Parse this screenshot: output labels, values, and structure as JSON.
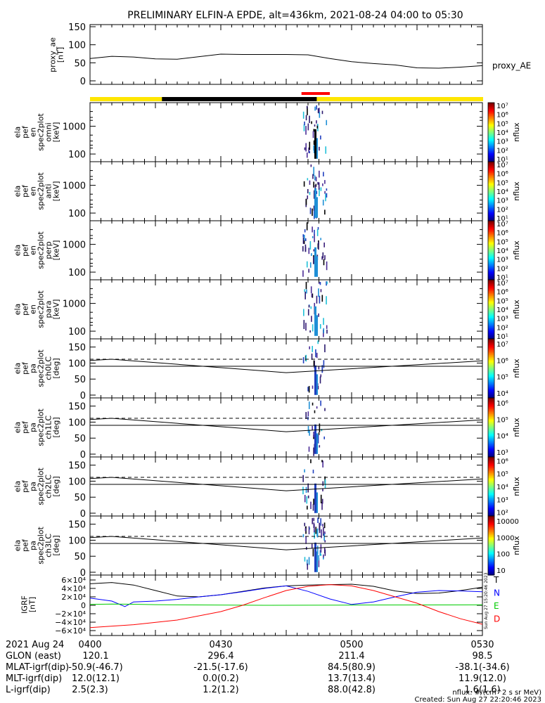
{
  "title": "PRELIMINARY ELFIN-A EPDE, alt=436km, 2021-08-24 04:00 to 05:30",
  "chart_data": [
    {
      "type": "line",
      "panel": "proxy_ae",
      "ylabel": [
        "proxy_ae",
        "[nT]"
      ],
      "ylim": [
        0,
        150
      ],
      "yticks": [
        "0",
        "50",
        "100",
        "150"
      ],
      "series": [
        {
          "name": "proxy_AE",
          "x": [
            0,
            5,
            10,
            15,
            20,
            25,
            30,
            35,
            40,
            45,
            50,
            55,
            60,
            65,
            70,
            75,
            80,
            85,
            90
          ],
          "y": [
            62,
            68,
            66,
            61,
            60,
            67,
            74,
            73,
            73,
            73,
            72,
            62,
            53,
            48,
            44,
            36,
            35,
            38,
            42
          ]
        }
      ],
      "colors": {
        "flag_yellow": "#ffe600",
        "flag_black": "#000000",
        "flag_red": "#ff0000"
      }
    },
    {
      "type": "heatmap",
      "panels": [
        {
          "label": [
            "ela",
            "pef",
            "en",
            "spec2plot",
            "omni",
            "[keV]"
          ]
        },
        {
          "label": [
            "ela",
            "pef",
            "en",
            "spec2plot",
            "anti",
            "[keV]"
          ]
        },
        {
          "label": [
            "ela",
            "pef",
            "en",
            "spec2plot",
            "perp",
            "[keV]"
          ]
        },
        {
          "label": [
            "ela",
            "pef",
            "en",
            "spec2plot",
            "para",
            "[keV]"
          ]
        }
      ],
      "yscale": "log",
      "yticks": [
        "100",
        "1000"
      ],
      "colorbar": {
        "label": "nflux",
        "ticks": [
          "10¹",
          "10²",
          "10³",
          "10⁴",
          "10⁵",
          "10⁶",
          "10⁷"
        ]
      }
    },
    {
      "type": "heatmap",
      "panels": [
        {
          "label": [
            "ela",
            "pef",
            "pa",
            "spec2plot",
            "ch0LC",
            "[deg]"
          ],
          "cbar_ticks": [
            "10⁴",
            "10⁵",
            "10⁶",
            "10⁷"
          ]
        },
        {
          "label": [
            "ela",
            "pef",
            "pa",
            "spec2plot",
            "ch1LC",
            "[deg]"
          ],
          "cbar_ticks": [
            "10³",
            "10⁴",
            "10⁵",
            "10⁶"
          ]
        },
        {
          "label": [
            "ela",
            "pef",
            "pa",
            "spec2plot",
            "ch2LC",
            "[deg]"
          ],
          "cbar_ticks": [
            "10²",
            "10³",
            "10⁴",
            "10⁵",
            "10⁶"
          ]
        },
        {
          "label": [
            "ela",
            "pef",
            "pa",
            "spec2plot",
            "ch3LC",
            "[deg]"
          ],
          "cbar_ticks": [
            "10",
            "100",
            "1000",
            "10000"
          ]
        }
      ],
      "ylim": [
        0,
        180
      ],
      "yticks": [
        "0",
        "50",
        "100",
        "150"
      ],
      "colorbar": {
        "label": "nflux"
      },
      "lc_lines": {
        "solid_upper": {
          "x": [
            0,
            5,
            45,
            90
          ],
          "y": [
            108,
            112,
            70,
            107
          ]
        },
        "dashed": {
          "x": [
            0,
            90
          ],
          "y": [
            112,
            112
          ]
        },
        "solid_lower": {
          "x": [
            0,
            90
          ],
          "y": [
            90,
            90
          ]
        }
      }
    },
    {
      "type": "line",
      "panel": "IGRF",
      "ylabel": [
        "IGRF",
        "[nT]"
      ],
      "ylim": [
        -65000,
        65000
      ],
      "yticks": [
        "6×10⁴",
        "4×10⁴",
        "2×10⁴",
        "0",
        "−2×10⁴",
        "−4×10⁴",
        "−6×10⁴"
      ],
      "series": [
        {
          "name": "T",
          "color": "#000000",
          "x": [
            0,
            5,
            10,
            15,
            20,
            25,
            30,
            35,
            40,
            45,
            50,
            55,
            60,
            65,
            70,
            75,
            80,
            85,
            90
          ],
          "y": [
            51000,
            54000,
            48000,
            35000,
            22000,
            20000,
            25000,
            33000,
            41000,
            46000,
            48000,
            49000,
            50000,
            45000,
            34000,
            28000,
            29000,
            35000,
            43000
          ]
        },
        {
          "name": "N",
          "color": "#0000ff",
          "x": [
            0,
            5,
            8,
            10,
            15,
            20,
            25,
            30,
            35,
            40,
            45,
            50,
            55,
            60,
            65,
            70,
            75,
            80,
            85,
            90
          ],
          "y": [
            17000,
            10000,
            -3000,
            8000,
            10000,
            14000,
            20000,
            25000,
            32000,
            40000,
            46000,
            33000,
            15000,
            2000,
            8000,
            20000,
            31000,
            35000,
            34000,
            32000
          ]
        },
        {
          "name": "E",
          "color": "#00cc00",
          "x": [
            0,
            5,
            10,
            15,
            20,
            40,
            60,
            90
          ],
          "y": [
            2000,
            3000,
            2500,
            1500,
            1000,
            0,
            500,
            1000
          ]
        },
        {
          "name": "D",
          "color": "#ff0000",
          "x": [
            0,
            10,
            20,
            30,
            35,
            40,
            45,
            50,
            55,
            60,
            65,
            70,
            75,
            80,
            85,
            90
          ],
          "y": [
            -53000,
            -46000,
            -35000,
            -15000,
            0,
            18000,
            35000,
            45000,
            49000,
            46000,
            35000,
            20000,
            5000,
            -15000,
            -32000,
            -45000
          ]
        }
      ]
    }
  ],
  "footer": {
    "rows": [
      {
        "label": "2021 Aug 24",
        "values": [
          "0400",
          "0430",
          "0500",
          "0530"
        ]
      },
      {
        "label": "GLON (east)",
        "values": [
          "120.1",
          "296.4",
          "211.4",
          "98.5"
        ]
      },
      {
        "label": "MLAT-igrf(dip)",
        "values": [
          "-50.9(-46.7)",
          "-21.5(-17.6)",
          "84.5(80.9)",
          "-38.1(-34.6)"
        ]
      },
      {
        "label": "MLT-igrf(dip)",
        "values": [
          "12.0(12.1)",
          "0.0(0.2)",
          "13.7(13.4)",
          "11.9(12.0)"
        ]
      },
      {
        "label": "L-igrf(dip)",
        "values": [
          "2.5(2.3)",
          "1.2(1.2)",
          "88.0(42.8)",
          "1.6(1.6)"
        ]
      }
    ],
    "units_note": "nflux: #/(cm^2 s sr MeV)",
    "created": "Created: Sun Aug 27 22:20:46 2023",
    "side_stamp": "Sun Aug 27 15:20:46 2023"
  }
}
